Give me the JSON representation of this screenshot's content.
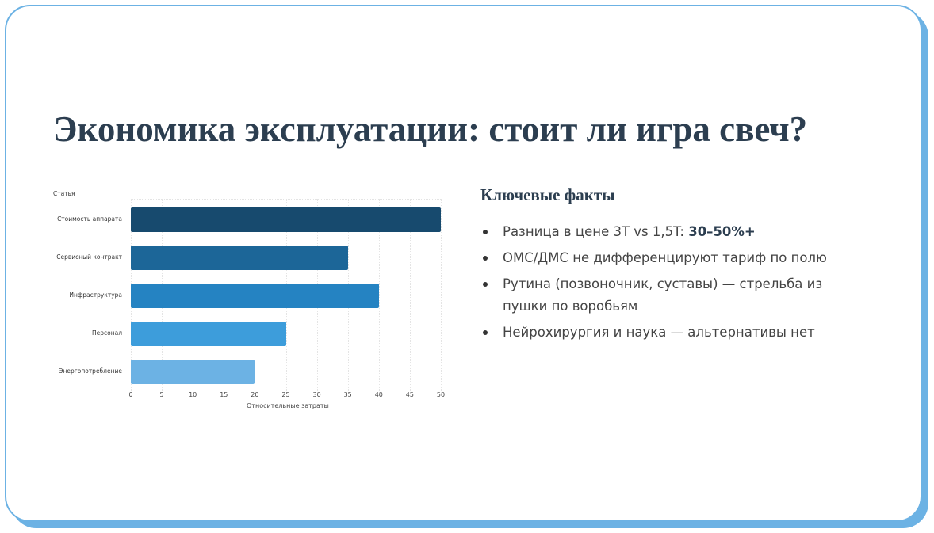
{
  "slide": {
    "title": "Экономика эксплуатации: стоит ли игра свеч?",
    "border_color": "#6cb2e4",
    "title_color": "#2c3e50"
  },
  "chart_data": {
    "type": "bar",
    "orientation": "horizontal",
    "title": "",
    "xlabel": "Относительные затраты",
    "ylabel": "Статья",
    "categories": [
      "Стоимость аппарата",
      "Сервисный контракт",
      "Инфраструктура",
      "Персонал",
      "Энергопотребление"
    ],
    "values": [
      50,
      35,
      40,
      25,
      20
    ],
    "colors": [
      "#174a6e",
      "#1c6698",
      "#2583c2",
      "#3d9ddb",
      "#6cb2e4"
    ],
    "xlim": [
      0,
      50
    ],
    "xticks": [
      "0",
      "5",
      "10",
      "15",
      "20",
      "25",
      "30",
      "35",
      "40",
      "45",
      "50"
    ],
    "grid": true,
    "legend": "none"
  },
  "facts": {
    "heading": "Ключевые факты",
    "items": [
      {
        "text": "Разница в цене 3T vs 1,5T: ",
        "bold": "30–50%+"
      },
      {
        "text": "ОМС/ДМС не дифференцируют тариф по полю",
        "bold": ""
      },
      {
        "text": "Рутина (позвоночник, суставы) — стрельба из пушки по воробьям",
        "bold": ""
      },
      {
        "text": "Нейрохирургия и наука — альтернативы нет",
        "bold": ""
      }
    ]
  }
}
